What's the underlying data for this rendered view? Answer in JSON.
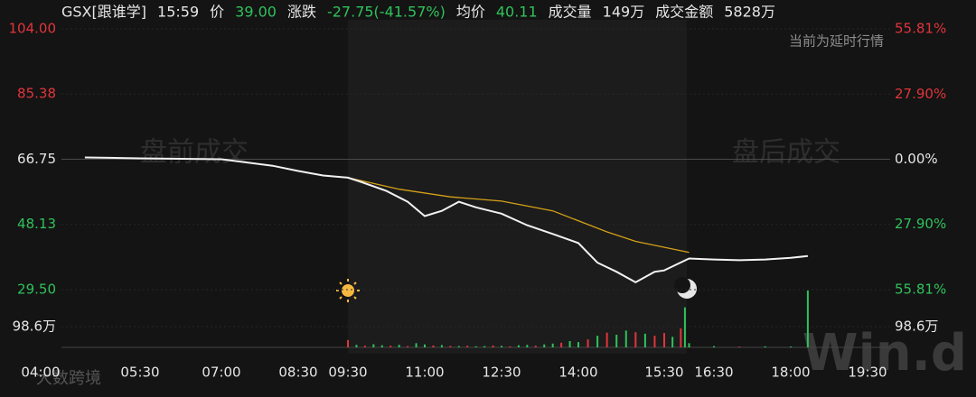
{
  "chart_data": {
    "type": "line",
    "header": [
      "GSX[跟谁学]",
      "15:59",
      "价",
      "39.00",
      "涨跌",
      "-27.75(-41.57%)",
      "均价",
      "40.11",
      "成交量",
      "149万",
      "成交金额",
      "5828万"
    ],
    "header_colors": [
      "#e6e6e6",
      "#e6e6e6",
      "#e6e6e6",
      "#2fc25b",
      "#e6e6e6",
      "#2fc25b",
      "#e6e6e6",
      "#2fc25b",
      "#e6e6e6",
      "#e6e6e6",
      "#e6e6e6",
      "#e6e6e6"
    ],
    "notice": "当前为延时行情",
    "annotations": [
      "盘前成交",
      "盘后成交"
    ],
    "watermarks": [
      "Win.d",
      "大数跨境"
    ],
    "xticks": [
      "04:00",
      "05:30",
      "07:00",
      "08:30",
      "09:30",
      "11:00",
      "12:30",
      "14:00",
      "15:30",
      "16:30",
      "18:00",
      "19:30"
    ],
    "ylim": [
      29.5,
      104
    ],
    "yticks": [
      {
        "value": 104,
        "label": "104.00"
      },
      {
        "value": 85.38,
        "label": "85.38"
      },
      {
        "value": 66.75,
        "label": "66.75"
      },
      {
        "value": 48.13,
        "label": "48.13"
      },
      {
        "value": 29.5,
        "label": "29.50"
      }
    ],
    "ytick_colors": [
      "#e0353b",
      "#e0353b",
      "#e6e6e6",
      "#2fc25b",
      "#2fc25b"
    ],
    "y2lim": [
      -55.81,
      55.81
    ],
    "y2ticks": [
      {
        "value": 55.81,
        "label": "55.81%"
      },
      {
        "value": 27.9,
        "label": "27.90%"
      },
      {
        "value": 0,
        "label": "0.00%"
      },
      {
        "value": -27.9,
        "label": "27.90%"
      },
      {
        "value": -55.81,
        "label": "55.81%"
      }
    ],
    "series": [
      {
        "color": "#f2f2f2",
        "x": [
          "04:40",
          "05:30",
          "07:00",
          "08:00",
          "08:30",
          "09:00",
          "09:30",
          "09:45",
          "10:15",
          "10:40",
          "11:00",
          "11:20",
          "11:40",
          "12:00",
          "12:30",
          "13:00",
          "13:30",
          "14:00",
          "14:20",
          "14:40",
          "15:00",
          "15:20",
          "15:30",
          "16:00",
          "16:30",
          "17:00",
          "17:30",
          "18:00",
          "18:20"
        ],
        "values": [
          67.26,
          67.0,
          66.75,
          64.9,
          63.4,
          62.1,
          61.5,
          60.3,
          57.7,
          54.6,
          50.5,
          52.0,
          54.6,
          53.0,
          51.2,
          47.9,
          45.4,
          42.8,
          37.2,
          34.6,
          31.6,
          34.6,
          35.0,
          38.4,
          38.1,
          37.9,
          38.1,
          38.6,
          39.1
        ]
      },
      {
        "color": "#d4a017",
        "x": [
          "09:30",
          "10:30",
          "11:30",
          "12:30",
          "13:30",
          "14:30",
          "15:00",
          "16:00"
        ],
        "values": [
          61.5,
          58.2,
          56.0,
          54.8,
          52.0,
          46.0,
          43.3,
          40.11
        ]
      }
    ],
    "volume": {
      "ylim": [
        0,
        270
      ],
      "ticks": [
        {
          "value": 98.6,
          "label": "98.6万"
        }
      ],
      "x": [
        "09:30",
        "09:40",
        "09:50",
        "10:00",
        "10:10",
        "10:20",
        "10:30",
        "10:40",
        "10:50",
        "11:00",
        "11:10",
        "11:20",
        "11:30",
        "11:40",
        "11:50",
        "12:00",
        "12:10",
        "12:20",
        "12:30",
        "12:40",
        "12:50",
        "13:00",
        "13:10",
        "13:20",
        "13:30",
        "13:40",
        "13:50",
        "14:00",
        "14:10",
        "14:20",
        "14:30",
        "14:40",
        "14:50",
        "15:00",
        "15:10",
        "15:20",
        "15:30",
        "15:40",
        "15:50",
        "15:55",
        "16:00",
        "16:30",
        "17:00",
        "17:30",
        "18:00",
        "18:20"
      ],
      "values": [
        35,
        12,
        8,
        15,
        10,
        8,
        12,
        6,
        20,
        14,
        9,
        11,
        7,
        6,
        8,
        5,
        6,
        9,
        7,
        5,
        10,
        12,
        8,
        14,
        18,
        22,
        30,
        25,
        38,
        55,
        70,
        60,
        80,
        72,
        65,
        55,
        68,
        50,
        90,
        190,
        20,
        6,
        4,
        5,
        4,
        270
      ],
      "colors": [
        "#e0353b",
        "#2fc25b",
        "#e0353b",
        "#2fc25b",
        "#2fc25b",
        "#e0353b",
        "#2fc25b",
        "#e0353b",
        "#2fc25b",
        "#2fc25b",
        "#e0353b",
        "#2fc25b",
        "#e0353b",
        "#2fc25b",
        "#e0353b",
        "#2fc25b",
        "#2fc25b",
        "#e0353b",
        "#2fc25b",
        "#e0353b",
        "#2fc25b",
        "#2fc25b",
        "#e0353b",
        "#2fc25b",
        "#2fc25b",
        "#e0353b",
        "#2fc25b",
        "#2fc25b",
        "#e0353b",
        "#2fc25b",
        "#e0353b",
        "#2fc25b",
        "#2fc25b",
        "#e0353b",
        "#2fc25b",
        "#e0353b",
        "#e0353b",
        "#2fc25b",
        "#e0353b",
        "#2fc25b",
        "#2fc25b",
        "#2fc25b",
        "#e0353b",
        "#2fc25b",
        "#2fc25b",
        "#2fc25b"
      ]
    }
  }
}
